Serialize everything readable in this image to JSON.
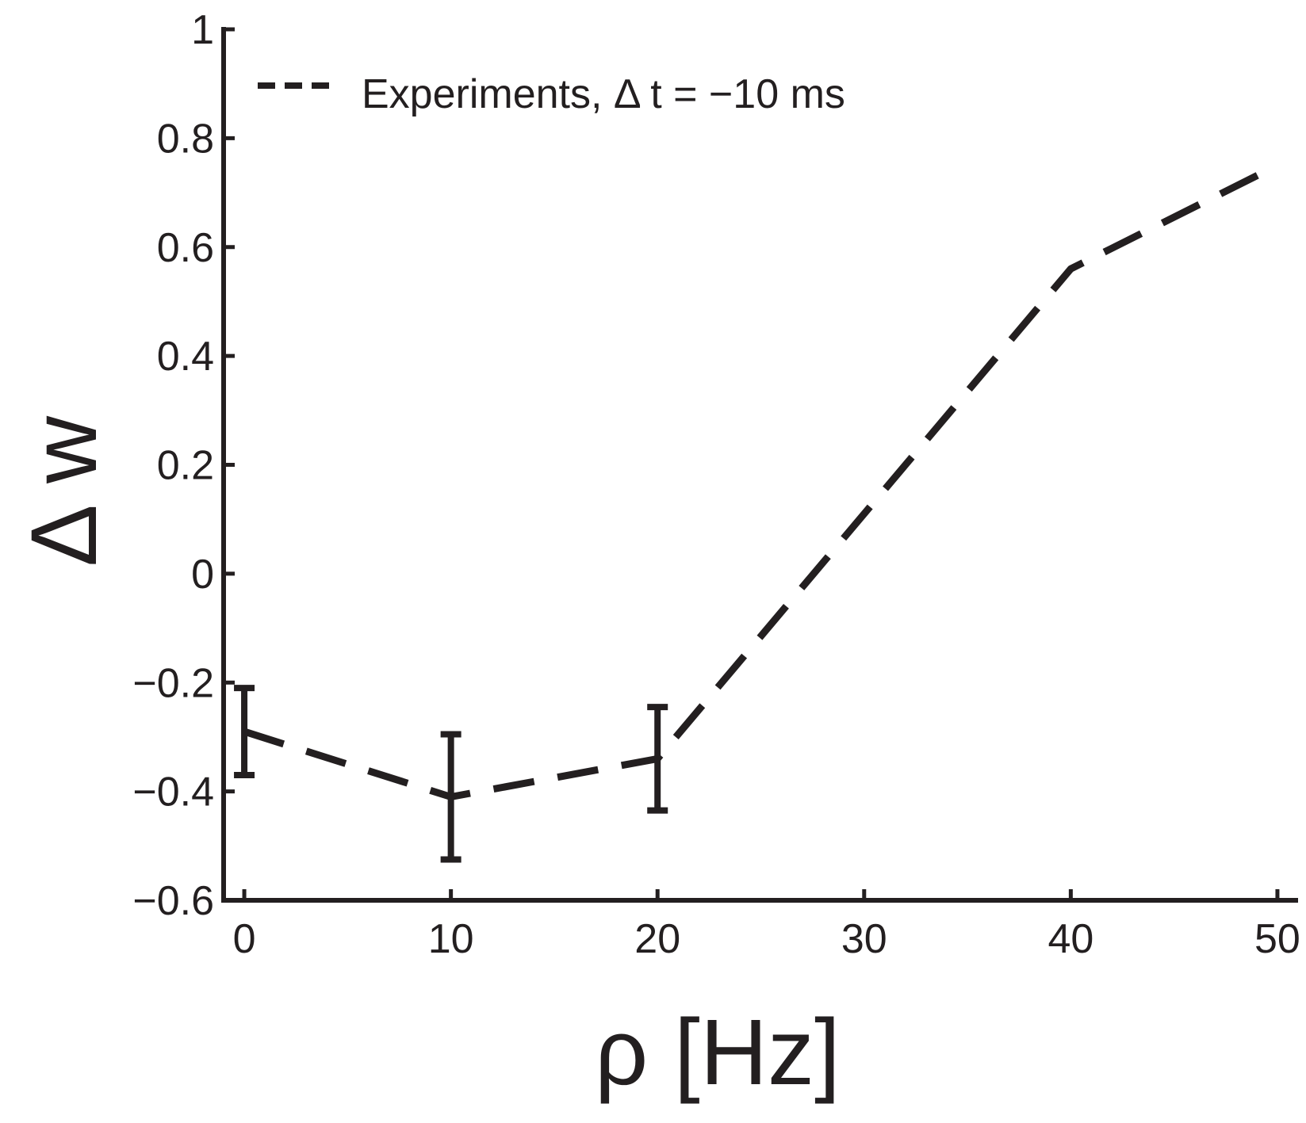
{
  "chart_data": {
    "type": "line",
    "x": [
      0,
      10,
      20,
      40,
      50
    ],
    "series": [
      {
        "name": "Experiments, Δ t = −10 ms",
        "y": [
          -0.29,
          -0.41,
          -0.34,
          0.56,
          0.75
        ],
        "error_bars": [
          {
            "x": 0,
            "low": -0.37,
            "high": -0.21
          },
          {
            "x": 10,
            "low": -0.525,
            "high": -0.295
          },
          {
            "x": 20,
            "low": -0.435,
            "high": -0.245
          }
        ],
        "style": "dashed",
        "color": "#231f20"
      }
    ],
    "xlabel": "ρ [Hz]",
    "ylabel": "Δ w",
    "xlim": [
      -1,
      51
    ],
    "ylim": [
      -0.6,
      1
    ],
    "xticks": [
      0,
      10,
      20,
      30,
      40,
      50
    ],
    "xtick_labels": [
      "0",
      "10",
      "20",
      "30",
      "40",
      "50"
    ],
    "yticks": [
      -0.6,
      -0.4,
      -0.2,
      0,
      0.2,
      0.4,
      0.6,
      0.8,
      1
    ],
    "ytick_labels": [
      "−0.6",
      "−0.4",
      "−0.2",
      "0",
      "0.2",
      "0.4",
      "0.6",
      "0.8",
      "1"
    ],
    "legend": {
      "position": "top-left",
      "entries": [
        "Experiments, Δ t = −10 ms"
      ]
    },
    "grid": false
  }
}
